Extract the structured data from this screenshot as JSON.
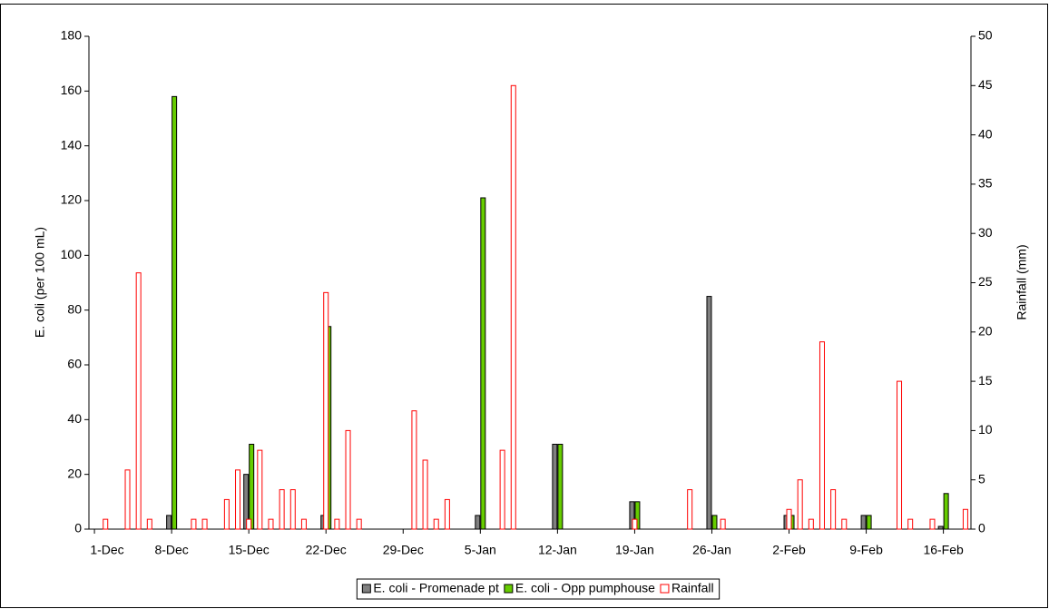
{
  "chart_data": {
    "type": "bar",
    "y_label": "E. coli (per 100 mL)",
    "y2_label": "Rainfall (mm)",
    "xlim": [
      "1-Dec",
      "18-Feb"
    ],
    "xticks": [
      "1-Dec",
      "8-Dec",
      "15-Dec",
      "22-Dec",
      "29-Dec",
      "5-Jan",
      "12-Jan",
      "19-Jan",
      "26-Jan",
      "2-Feb",
      "9-Feb",
      "16-Feb"
    ],
    "ylim": [
      0,
      180
    ],
    "yticks": [
      0,
      20,
      40,
      60,
      80,
      100,
      120,
      140,
      160,
      180
    ],
    "y2lim": [
      0,
      50
    ],
    "y2ticks": [
      0,
      5,
      10,
      15,
      20,
      25,
      30,
      35,
      40,
      45,
      50
    ],
    "legend": "bottom",
    "series": [
      {
        "name": "E. coli - Promenade pt",
        "color": "#808080",
        "x": [
          "8-Dec",
          "15-Dec",
          "22-Dec",
          "5-Jan",
          "12-Jan",
          "19-Jan",
          "26-Jan",
          "2-Feb",
          "9-Feb",
          "16-Feb"
        ],
        "values": [
          5,
          20,
          5,
          5,
          31,
          10,
          85,
          5,
          5,
          1
        ]
      },
      {
        "name": "E. coli - Opp pumphouse",
        "color": "#66cc00",
        "x": [
          "8-Dec",
          "15-Dec",
          "22-Dec",
          "5-Jan",
          "12-Jan",
          "19-Jan",
          "26-Jan",
          "2-Feb",
          "9-Feb",
          "16-Feb"
        ],
        "values": [
          158,
          31,
          74,
          121,
          31,
          10,
          5,
          5,
          5,
          13
        ]
      },
      {
        "name": "Rainfall",
        "color": "#ff0000",
        "axis": "y2",
        "x": [
          "2-Dec",
          "4-Dec",
          "5-Dec",
          "6-Dec",
          "10-Dec",
          "11-Dec",
          "13-Dec",
          "14-Dec",
          "15-Dec",
          "16-Dec",
          "17-Dec",
          "18-Dec",
          "19-Dec",
          "20-Dec",
          "22-Dec",
          "23-Dec",
          "24-Dec",
          "25-Dec",
          "30-Dec",
          "31-Dec",
          "1-Jan",
          "2-Jan",
          "7-Jan",
          "8-Jan",
          "19-Jan",
          "24-Jan",
          "27-Jan",
          "2-Feb",
          "3-Feb",
          "4-Feb",
          "5-Feb",
          "6-Feb",
          "7-Feb",
          "12-Feb",
          "13-Feb",
          "15-Feb",
          "18-Feb"
        ],
        "values": [
          1,
          6,
          26,
          1,
          1,
          1,
          3,
          6,
          1,
          8,
          1,
          4,
          4,
          1,
          24,
          1,
          10,
          1,
          12,
          7,
          1,
          3,
          8,
          45,
          1,
          4,
          1,
          2,
          5,
          1,
          19,
          4,
          1,
          15,
          1,
          1,
          2
        ]
      }
    ]
  }
}
